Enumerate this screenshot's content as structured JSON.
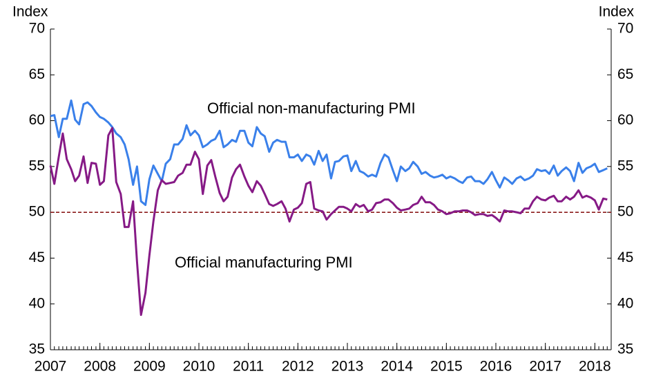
{
  "chart_data": {
    "type": "line",
    "ylabel": "Index",
    "y2label": "Index",
    "annotations": [],
    "x": [
      2007,
      2007.08,
      2007.17,
      2007.25,
      2007.33,
      2007.42,
      2007.5,
      2007.58,
      2007.67,
      2007.75,
      2007.83,
      2007.92,
      2008,
      2008.08,
      2008.17,
      2008.25,
      2008.33,
      2008.42,
      2008.5,
      2008.58,
      2008.67,
      2008.75,
      2008.83,
      2008.92,
      2009,
      2009.08,
      2009.17,
      2009.25,
      2009.33,
      2009.42,
      2009.5,
      2009.58,
      2009.67,
      2009.75,
      2009.83,
      2009.92,
      2010,
      2010.08,
      2010.17,
      2010.25,
      2010.33,
      2010.42,
      2010.5,
      2010.58,
      2010.67,
      2010.75,
      2010.83,
      2010.92,
      2011,
      2011.08,
      2011.17,
      2011.25,
      2011.33,
      2011.42,
      2011.5,
      2011.58,
      2011.67,
      2011.75,
      2011.83,
      2011.92,
      2012,
      2012.08,
      2012.17,
      2012.25,
      2012.33,
      2012.42,
      2012.5,
      2012.58,
      2012.67,
      2012.75,
      2012.83,
      2012.92,
      2013,
      2013.08,
      2013.17,
      2013.25,
      2013.33,
      2013.42,
      2013.5,
      2013.58,
      2013.67,
      2013.75,
      2013.83,
      2013.92,
      2014,
      2014.08,
      2014.17,
      2014.25,
      2014.33,
      2014.42,
      2014.5,
      2014.58,
      2014.67,
      2014.75,
      2014.83,
      2014.92,
      2015,
      2015.08,
      2015.17,
      2015.25,
      2015.33,
      2015.42,
      2015.5,
      2015.58,
      2015.67,
      2015.75,
      2015.83,
      2015.92,
      2016,
      2016.08,
      2016.17,
      2016.25,
      2016.33,
      2016.42,
      2016.5,
      2016.58,
      2016.67,
      2016.75,
      2016.83,
      2016.92,
      2017,
      2017.08,
      2017.17,
      2017.25,
      2017.33,
      2017.42,
      2017.5,
      2017.58,
      2017.67,
      2017.75,
      2017.83,
      2017.92,
      2018,
      2018.08,
      2018.17,
      2018.25
    ],
    "series": [
      {
        "name": "Official non-manufacturing PMI",
        "color": "#3a80ea",
        "values": [
          60.5,
          60.6,
          58.2,
          60.2,
          60.2,
          62.2,
          60.1,
          59.6,
          61.8,
          62.0,
          61.6,
          60.9,
          60.4,
          60.2,
          59.8,
          59.3,
          58.6,
          58.2,
          57.4,
          55.8,
          53.0,
          55.0,
          51.2,
          50.8,
          53.6,
          55.1,
          54.2,
          53.4,
          55.3,
          55.8,
          57.4,
          57.4,
          58.0,
          59.5,
          58.4,
          58.9,
          58.4,
          57.1,
          57.4,
          57.8,
          58.0,
          58.9,
          57.1,
          57.4,
          57.9,
          57.7,
          58.9,
          58.9,
          57.6,
          57.2,
          59.3,
          58.6,
          58.3,
          56.6,
          57.6,
          57.9,
          57.7,
          57.7,
          56.0,
          56.0,
          56.3,
          55.6,
          56.3,
          56.1,
          55.2,
          56.7,
          55.6,
          56.3,
          53.7,
          55.5,
          55.6,
          56.1,
          56.2,
          54.5,
          55.6,
          54.5,
          54.3,
          53.9,
          54.1,
          53.9,
          55.4,
          56.3,
          56.0,
          54.6,
          53.4,
          55.0,
          54.5,
          54.8,
          55.5,
          55.0,
          54.2,
          54.4,
          54.0,
          53.8,
          53.9,
          54.1,
          53.7,
          53.9,
          53.7,
          53.4,
          53.2,
          53.8,
          53.9,
          53.4,
          53.4,
          53.1,
          53.6,
          54.4,
          53.5,
          52.7,
          53.8,
          53.5,
          53.1,
          53.7,
          53.9,
          53.5,
          53.7,
          54.0,
          54.7,
          54.5,
          54.6,
          54.2,
          55.1,
          54.0,
          54.5,
          54.9,
          54.5,
          53.4,
          55.4,
          54.3,
          54.8,
          55.0,
          55.3,
          54.4,
          54.6,
          54.8
        ]
      },
      {
        "name": "Official manufacturing PMI",
        "color": "#861a86",
        "values": [
          55.1,
          53.1,
          56.1,
          58.6,
          55.8,
          54.7,
          53.4,
          54.0,
          56.1,
          53.2,
          55.4,
          55.3,
          53.0,
          53.4,
          58.4,
          59.2,
          53.3,
          52.0,
          48.4,
          48.4,
          51.2,
          44.6,
          38.8,
          41.2,
          45.3,
          49.0,
          52.4,
          53.5,
          53.1,
          53.2,
          53.3,
          54.0,
          54.3,
          55.2,
          55.2,
          56.6,
          55.8,
          52.0,
          55.1,
          55.7,
          53.9,
          52.1,
          51.2,
          51.7,
          53.8,
          54.7,
          55.2,
          53.9,
          52.9,
          52.2,
          53.4,
          52.9,
          52.0,
          50.9,
          50.7,
          50.9,
          51.2,
          50.4,
          49.0,
          50.3,
          50.5,
          51.0,
          53.1,
          53.3,
          50.4,
          50.2,
          50.1,
          49.2,
          49.8,
          50.2,
          50.6,
          50.6,
          50.4,
          50.1,
          50.9,
          50.6,
          50.8,
          50.1,
          50.3,
          51.0,
          51.1,
          51.4,
          51.4,
          51.0,
          50.5,
          50.2,
          50.3,
          50.4,
          50.8,
          51.0,
          51.7,
          51.1,
          51.1,
          50.8,
          50.3,
          50.1,
          49.8,
          49.9,
          50.1,
          50.1,
          50.2,
          50.2,
          50.0,
          49.7,
          49.8,
          49.8,
          49.6,
          49.7,
          49.4,
          49.0,
          50.2,
          50.1,
          50.1,
          50.0,
          49.9,
          50.4,
          50.4,
          51.2,
          51.7,
          51.4,
          51.3,
          51.6,
          51.8,
          51.2,
          51.2,
          51.7,
          51.4,
          51.7,
          52.4,
          51.6,
          51.8,
          51.6,
          51.3,
          50.3,
          51.5,
          51.4
        ]
      }
    ],
    "xlim": [
      2007,
      2018.33
    ],
    "xticks": [
      2007,
      2008,
      2009,
      2010,
      2011,
      2012,
      2013,
      2014,
      2015,
      2016,
      2017,
      2018
    ],
    "ylim": [
      35,
      70
    ],
    "yticks": [
      35,
      40,
      45,
      50,
      55,
      60,
      65,
      70
    ],
    "y2lim": [
      35,
      70
    ],
    "y2ticks": [
      35,
      40,
      45,
      50,
      55,
      60,
      65,
      70
    ],
    "reference_line": {
      "value": 50,
      "color": "#8b1a1a",
      "style": "dashed"
    },
    "grid": false
  }
}
